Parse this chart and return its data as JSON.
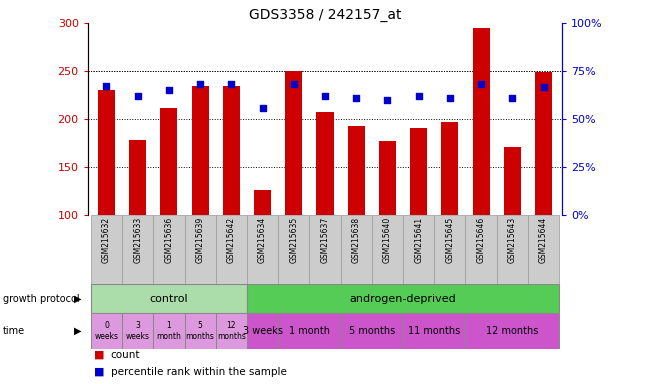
{
  "title": "GDS3358 / 242157_at",
  "samples": [
    "GSM215632",
    "GSM215633",
    "GSM215636",
    "GSM215639",
    "GSM215642",
    "GSM215634",
    "GSM215635",
    "GSM215637",
    "GSM215638",
    "GSM215640",
    "GSM215641",
    "GSM215645",
    "GSM215646",
    "GSM215643",
    "GSM215644"
  ],
  "counts": [
    230,
    178,
    212,
    234,
    234,
    126,
    250,
    207,
    193,
    177,
    191,
    197,
    295,
    171,
    249
  ],
  "percentile_ranks": [
    234,
    224,
    230,
    236,
    236,
    211,
    236,
    224,
    222,
    220,
    224,
    222,
    236,
    222,
    233
  ],
  "ylim_left": [
    100,
    300
  ],
  "ylim_right": [
    0,
    100
  ],
  "yticks_left": [
    100,
    150,
    200,
    250,
    300
  ],
  "yticks_right": [
    0,
    25,
    50,
    75,
    100
  ],
  "bar_color": "#cc0000",
  "marker_color": "#0000cc",
  "bg_color": "#ffffff",
  "control_color": "#aaddaa",
  "androgen_color": "#55cc55",
  "time_ctrl_color": "#dd99dd",
  "time_and_color": "#cc55cc",
  "xlabels_bg": "#cccccc",
  "control_label": "control",
  "androgen_label": "androgen-deprived",
  "growth_protocol_label": "growth protocol",
  "time_label": "time",
  "time_labels_control": [
    "0\nweeks",
    "3\nweeks",
    "1\nmonth",
    "5\nmonths",
    "12\nmonths"
  ],
  "androgen_groups": [
    {
      "label": "3 weeks",
      "start": 5,
      "end": 6
    },
    {
      "label": "1 month",
      "start": 6,
      "end": 8
    },
    {
      "label": "5 months",
      "start": 8,
      "end": 10
    },
    {
      "label": "11 months",
      "start": 10,
      "end": 12
    },
    {
      "label": "12 months",
      "start": 12,
      "end": 15
    }
  ],
  "legend_count": "count",
  "legend_percentile": "percentile rank within the sample"
}
